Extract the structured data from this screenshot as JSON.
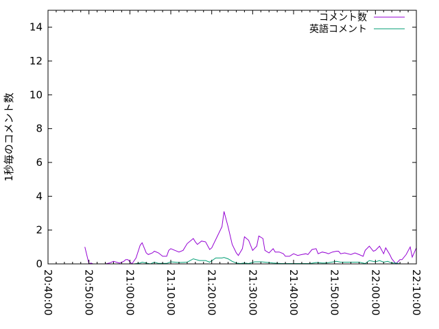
{
  "chart_data": {
    "type": "line",
    "title": "",
    "xlabel": "",
    "ylabel": "1秒毎のコメント数",
    "xlim": [
      "20:40:00",
      "22:10:00"
    ],
    "ylim": [
      0,
      15
    ],
    "x_ticks": [
      "20:40:00",
      "20:50:00",
      "21:00:00",
      "21:10:00",
      "21:20:00",
      "21:30:00",
      "21:40:00",
      "21:50:00",
      "22:00:00",
      "22:10:00"
    ],
    "y_ticks": [
      "0",
      "2",
      "4",
      "6",
      "8",
      "10",
      "12",
      "14"
    ],
    "grid": false,
    "legend_position": "top-right",
    "series": [
      {
        "name": "コメント数",
        "color": "#9400d3",
        "points": [
          [
            "20:49:00",
            1.0
          ],
          [
            "20:50:00",
            0
          ],
          [
            "20:50:30",
            0.05
          ],
          [
            "20:51:00",
            0
          ],
          [
            "20:54:00",
            0
          ],
          [
            "20:55:00",
            0.05
          ],
          [
            "20:56:00",
            0.15
          ],
          [
            "20:57:00",
            0.08
          ],
          [
            "20:57:30",
            0.05
          ],
          [
            "20:58:30",
            0.15
          ],
          [
            "20:59:00",
            0.25
          ],
          [
            "20:59:30",
            0.25
          ],
          [
            "21:00:30",
            0
          ],
          [
            "21:01:30",
            0.35
          ],
          [
            "21:02:30",
            1.1
          ],
          [
            "21:03:00",
            1.25
          ],
          [
            "21:04:00",
            0.65
          ],
          [
            "21:04:30",
            0.55
          ],
          [
            "21:05:30",
            0.65
          ],
          [
            "21:06:00",
            0.75
          ],
          [
            "21:07:00",
            0.65
          ],
          [
            "21:08:00",
            0.45
          ],
          [
            "21:09:00",
            0.45
          ],
          [
            "21:09:30",
            0.8
          ],
          [
            "21:10:00",
            0.9
          ],
          [
            "21:11:00",
            0.8
          ],
          [
            "21:12:00",
            0.7
          ],
          [
            "21:13:00",
            0.8
          ],
          [
            "21:14:00",
            1.2
          ],
          [
            "21:15:30",
            1.5
          ],
          [
            "21:16:00",
            1.3
          ],
          [
            "21:16:30",
            1.15
          ],
          [
            "21:17:30",
            1.35
          ],
          [
            "21:18:30",
            1.3
          ],
          [
            "21:19:30",
            0.85
          ],
          [
            "21:20:00",
            0.95
          ],
          [
            "21:21:30",
            1.7
          ],
          [
            "21:22:30",
            2.2
          ],
          [
            "21:23:00",
            3.1
          ],
          [
            "21:24:00",
            2.2
          ],
          [
            "21:25:00",
            1.15
          ],
          [
            "21:26:00",
            0.65
          ],
          [
            "21:26:30",
            0.5
          ],
          [
            "21:27:30",
            0.9
          ],
          [
            "21:28:00",
            1.6
          ],
          [
            "21:29:00",
            1.4
          ],
          [
            "21:30:00",
            0.8
          ],
          [
            "21:31:00",
            1.05
          ],
          [
            "21:31:30",
            1.65
          ],
          [
            "21:32:30",
            1.5
          ],
          [
            "21:33:00",
            0.8
          ],
          [
            "21:34:00",
            0.65
          ],
          [
            "21:35:00",
            0.9
          ],
          [
            "21:35:30",
            0.7
          ],
          [
            "21:36:30",
            0.7
          ],
          [
            "21:37:30",
            0.6
          ],
          [
            "21:38:00",
            0.45
          ],
          [
            "21:39:00",
            0.45
          ],
          [
            "21:40:00",
            0.6
          ],
          [
            "21:41:00",
            0.5
          ],
          [
            "21:42:00",
            0.55
          ],
          [
            "21:43:00",
            0.6
          ],
          [
            "21:43:30",
            0.55
          ],
          [
            "21:44:30",
            0.85
          ],
          [
            "21:45:30",
            0.9
          ],
          [
            "21:46:00",
            0.6
          ],
          [
            "21:47:00",
            0.7
          ],
          [
            "21:48:00",
            0.65
          ],
          [
            "21:48:30",
            0.6
          ],
          [
            "21:49:30",
            0.7
          ],
          [
            "21:50:30",
            0.75
          ],
          [
            "21:51:00",
            0.75
          ],
          [
            "21:51:30",
            0.6
          ],
          [
            "21:52:30",
            0.65
          ],
          [
            "21:54:00",
            0.55
          ],
          [
            "21:55:00",
            0.65
          ],
          [
            "21:56:00",
            0.55
          ],
          [
            "21:57:00",
            0.45
          ],
          [
            "21:57:30",
            0.8
          ],
          [
            "21:58:30",
            1.05
          ],
          [
            "21:59:30",
            0.75
          ],
          [
            "22:00:00",
            0.8
          ],
          [
            "22:01:00",
            1.05
          ],
          [
            "22:02:00",
            0.6
          ],
          [
            "22:02:30",
            0.95
          ],
          [
            "22:03:30",
            0.55
          ],
          [
            "22:04:00",
            0.3
          ],
          [
            "22:05:00",
            0
          ],
          [
            "22:06:00",
            0.25
          ],
          [
            "22:06:30",
            0.25
          ],
          [
            "22:07:30",
            0.55
          ],
          [
            "22:08:30",
            1.0
          ],
          [
            "22:09:00",
            0.4
          ],
          [
            "22:10:00",
            0.95
          ]
        ]
      },
      {
        "name": "英語コメント",
        "color": "#009e73",
        "points": [
          [
            "20:58:00",
            0
          ],
          [
            "21:01:00",
            0
          ],
          [
            "21:02:30",
            0.05
          ],
          [
            "21:03:00",
            0.1
          ],
          [
            "21:04:00",
            0.05
          ],
          [
            "21:05:00",
            0
          ],
          [
            "21:06:00",
            0.1
          ],
          [
            "21:07:00",
            0.03
          ],
          [
            "21:09:00",
            0.03
          ],
          [
            "21:10:00",
            0.12
          ],
          [
            "21:11:00",
            0.1
          ],
          [
            "21:12:00",
            0.08
          ],
          [
            "21:14:00",
            0.1
          ],
          [
            "21:15:30",
            0.3
          ],
          [
            "21:17:00",
            0.2
          ],
          [
            "21:18:30",
            0.2
          ],
          [
            "21:19:30",
            0.1
          ],
          [
            "21:21:00",
            0.35
          ],
          [
            "21:22:30",
            0.35
          ],
          [
            "21:23:00",
            0.38
          ],
          [
            "21:24:00",
            0.3
          ],
          [
            "21:25:00",
            0.15
          ],
          [
            "21:26:00",
            0.05
          ],
          [
            "21:27:00",
            0.02
          ],
          [
            "21:28:00",
            0.05
          ],
          [
            "21:29:00",
            0.02
          ],
          [
            "21:30:30",
            0.12
          ],
          [
            "21:32:00",
            0.12
          ],
          [
            "21:33:00",
            0.1
          ],
          [
            "21:35:00",
            0.05
          ],
          [
            "21:37:00",
            0.02
          ],
          [
            "21:44:00",
            0.02
          ],
          [
            "21:45:30",
            0.08
          ],
          [
            "21:47:00",
            0.05
          ],
          [
            "21:48:00",
            0.05
          ],
          [
            "21:50:30",
            0.15
          ],
          [
            "21:51:30",
            0.1
          ],
          [
            "21:53:00",
            0.1
          ],
          [
            "21:56:00",
            0.1
          ],
          [
            "21:57:30",
            0.02
          ],
          [
            "21:58:30",
            0.2
          ],
          [
            "22:00:00",
            0.12
          ],
          [
            "22:01:00",
            0.2
          ],
          [
            "22:02:00",
            0.1
          ],
          [
            "22:03:00",
            0.15
          ],
          [
            "22:04:00",
            0.05
          ],
          [
            "22:05:00",
            0.05
          ],
          [
            "22:06:00",
            0
          ],
          [
            "22:10:00",
            0
          ]
        ]
      }
    ]
  }
}
